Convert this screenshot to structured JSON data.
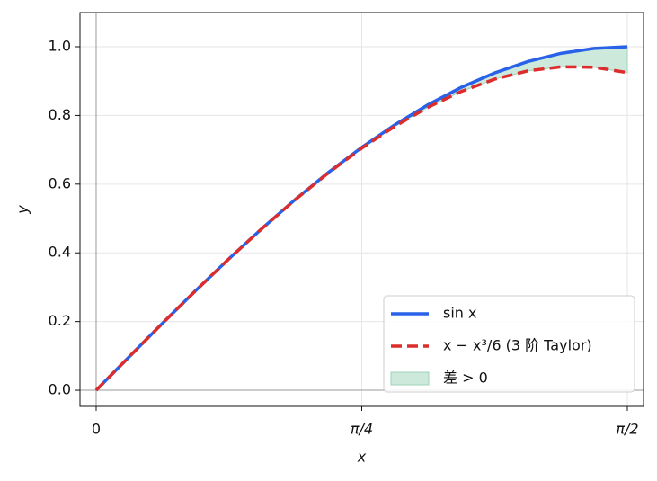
{
  "chart_data": {
    "type": "line",
    "x_label": "x",
    "y_label": "y",
    "x": [
      0,
      0.0982,
      0.1963,
      0.2945,
      0.3927,
      0.4909,
      0.589,
      0.6872,
      0.7854,
      0.8836,
      0.9817,
      1.0799,
      1.1781,
      1.2763,
      1.3744,
      1.4726,
      1.5708
    ],
    "series": [
      {
        "name": "sin x",
        "color": "#2962e8",
        "style": "solid",
        "values": [
          0,
          0.098,
          0.1951,
          0.2903,
          0.3827,
          0.4714,
          0.5556,
          0.6344,
          0.7071,
          0.773,
          0.8315,
          0.8819,
          0.9239,
          0.9569,
          0.9808,
          0.9952,
          1.0
        ]
      },
      {
        "name": "x − x³/6 (3 阶 Taylor)",
        "color": "#dd2c2c",
        "style": "dashed",
        "values": [
          0,
          0.098,
          0.1951,
          0.2902,
          0.3826,
          0.4712,
          0.555,
          0.6331,
          0.7047,
          0.7686,
          0.824,
          0.87,
          0.9056,
          0.9298,
          0.9417,
          0.9404,
          0.9248
        ]
      }
    ],
    "fill_between": {
      "name": "差 > 0",
      "color": "#cde9dc",
      "edge_color": "#9fd3b8"
    },
    "xlim": [
      -0.0478,
      1.6186
    ],
    "ylim": [
      -0.047,
      1.0995
    ],
    "xticks": [
      0,
      {
        "value": 0.7854,
        "label": "π/4"
      },
      {
        "value": 1.5708,
        "label": "π/2"
      }
    ],
    "yticks": [
      {
        "value": 0,
        "label": "0.0"
      },
      0.2,
      0.4,
      0.6,
      0.8,
      {
        "value": 1,
        "label": "1.0"
      }
    ],
    "grid": true,
    "legend": "lower right"
  }
}
